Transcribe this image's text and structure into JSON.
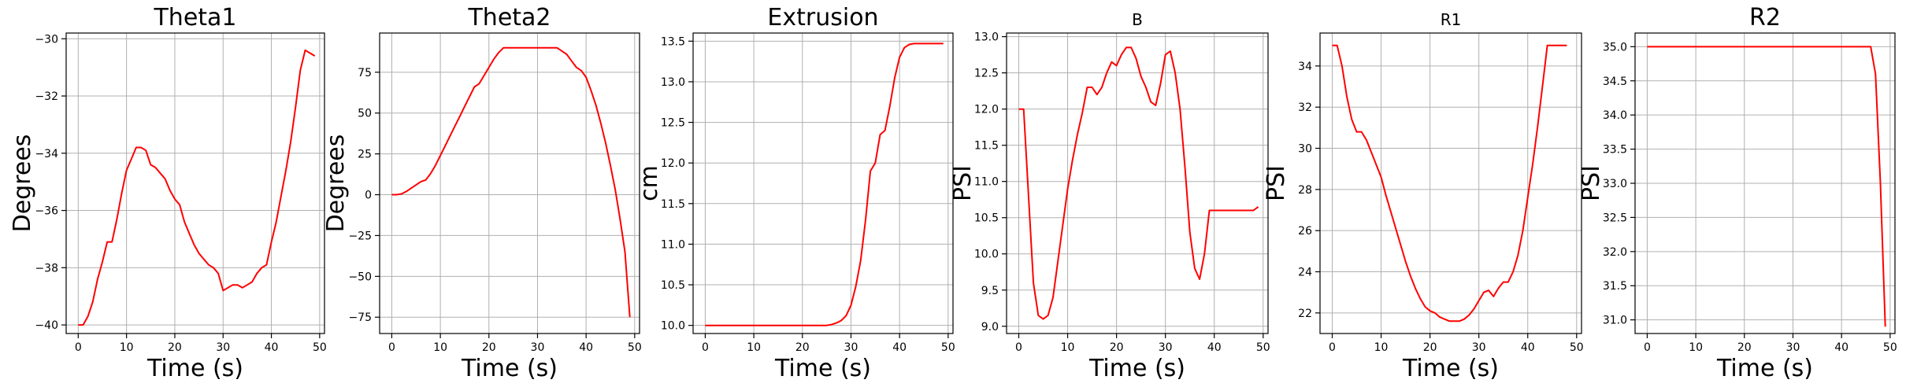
{
  "chart_data": [
    {
      "type": "line",
      "title": "Theta1",
      "xlabel": "Time (s)",
      "ylabel": "Degrees",
      "xlim": [
        -2.5,
        51
      ],
      "ylim": [
        -40.3,
        -29.8
      ],
      "xticks": [
        0,
        10,
        20,
        30,
        40,
        50
      ],
      "yticks": [
        -40,
        -38,
        -36,
        -34,
        -32,
        -30
      ],
      "grid": true,
      "line_color": "#ff0000",
      "x": [
        0,
        1,
        2,
        3,
        4,
        5,
        6,
        7,
        8,
        9,
        10,
        11,
        12,
        13,
        14,
        15,
        16,
        17,
        18,
        19,
        20,
        21,
        22,
        23,
        24,
        25,
        26,
        27,
        28,
        29,
        30,
        31,
        32,
        33,
        34,
        35,
        36,
        37,
        38,
        39,
        40,
        41,
        42,
        43,
        44,
        45,
        46,
        47,
        48,
        49
      ],
      "y": [
        -40,
        -40,
        -39.7,
        -39.2,
        -38.4,
        -37.8,
        -37.1,
        -37.1,
        -36.3,
        -35.4,
        -34.6,
        -34.2,
        -33.8,
        -33.8,
        -33.9,
        -34.4,
        -34.5,
        -34.7,
        -34.9,
        -35.3,
        -35.6,
        -35.8,
        -36.4,
        -36.8,
        -37.2,
        -37.5,
        -37.7,
        -37.9,
        -38.0,
        -38.2,
        -38.8,
        -38.7,
        -38.6,
        -38.6,
        -38.7,
        -38.6,
        -38.5,
        -38.2,
        -38.0,
        -37.9,
        -37.1,
        -36.4,
        -35.5,
        -34.6,
        -33.6,
        -32.4,
        -31.1,
        -30.4,
        -30.5,
        -30.6
      ]
    },
    {
      "type": "line",
      "title": "Theta2",
      "xlabel": "Time (s)",
      "ylabel": "Degrees",
      "xlim": [
        -2.5,
        51
      ],
      "ylim": [
        -85,
        99
      ],
      "xticks": [
        0,
        10,
        20,
        30,
        40,
        50
      ],
      "yticks": [
        -75,
        -50,
        -25,
        0,
        25,
        50,
        75
      ],
      "grid": true,
      "line_color": "#ff0000",
      "x": [
        0,
        1,
        2,
        3,
        4,
        5,
        6,
        7,
        8,
        9,
        10,
        11,
        12,
        13,
        14,
        15,
        16,
        17,
        18,
        19,
        20,
        21,
        22,
        23,
        24,
        25,
        26,
        27,
        28,
        29,
        30,
        31,
        32,
        33,
        34,
        35,
        36,
        37,
        38,
        39,
        40,
        41,
        42,
        43,
        44,
        45,
        46,
        47,
        48,
        49
      ],
      "y": [
        0,
        0,
        0.5,
        2,
        4,
        6,
        8,
        9,
        13,
        18,
        24,
        30,
        36,
        42,
        48,
        54,
        60,
        66,
        68,
        73,
        78,
        83,
        87,
        90,
        90,
        90,
        90,
        90,
        90,
        90,
        90,
        90,
        90,
        90,
        90,
        88,
        86,
        82,
        78,
        76,
        72,
        64,
        55,
        44,
        32,
        18,
        3,
        -15,
        -35,
        -75
      ]
    },
    {
      "type": "line",
      "title": "Extrusion",
      "xlabel": "Time (s)",
      "ylabel": "cm",
      "xlim": [
        -2.5,
        51
      ],
      "ylim": [
        9.9,
        13.6
      ],
      "xticks": [
        0,
        10,
        20,
        30,
        40,
        50
      ],
      "yticks": [
        10.0,
        10.5,
        11.0,
        11.5,
        12.0,
        12.5,
        13.0,
        13.5
      ],
      "grid": true,
      "line_color": "#ff0000",
      "x": [
        0,
        2,
        4,
        6,
        8,
        10,
        12,
        14,
        16,
        18,
        20,
        22,
        24,
        25,
        26,
        27,
        28,
        29,
        30,
        31,
        32,
        33,
        34,
        35,
        36,
        37,
        38,
        39,
        40,
        41,
        42,
        43,
        44,
        45,
        46,
        47,
        48,
        49
      ],
      "y": [
        10.0,
        10.0,
        10.0,
        10.0,
        10.0,
        10.0,
        10.0,
        10.0,
        10.0,
        10.0,
        10.0,
        10.0,
        10.0,
        10.0,
        10.01,
        10.03,
        10.06,
        10.12,
        10.25,
        10.48,
        10.8,
        11.3,
        11.9,
        12.0,
        12.35,
        12.4,
        12.7,
        13.05,
        13.3,
        13.42,
        13.46,
        13.47,
        13.47,
        13.47,
        13.47,
        13.47,
        13.47,
        13.47
      ]
    },
    {
      "type": "line",
      "title": "B",
      "xlabel": "Time (s)",
      "ylabel": "PSI",
      "xlim": [
        -2.5,
        51
      ],
      "ylim": [
        8.9,
        13.05
      ],
      "xticks": [
        0,
        10,
        20,
        30,
        40,
        50
      ],
      "yticks": [
        9.0,
        9.5,
        10.0,
        10.5,
        11.0,
        11.5,
        12.0,
        12.5,
        13.0
      ],
      "grid": true,
      "line_color": "#ff0000",
      "x": [
        0,
        1,
        2,
        3,
        4,
        5,
        6,
        7,
        8,
        9,
        10,
        11,
        12,
        13,
        14,
        15,
        16,
        17,
        18,
        19,
        20,
        21,
        22,
        23,
        24,
        25,
        26,
        27,
        28,
        29,
        30,
        31,
        32,
        33,
        34,
        35,
        36,
        37,
        38,
        39,
        40,
        41,
        42,
        43,
        44,
        45,
        46,
        47,
        48,
        49
      ],
      "y": [
        12.0,
        12.0,
        10.8,
        9.6,
        9.15,
        9.1,
        9.15,
        9.4,
        9.9,
        10.4,
        10.9,
        11.3,
        11.65,
        11.95,
        12.3,
        12.3,
        12.2,
        12.3,
        12.5,
        12.65,
        12.6,
        12.75,
        12.85,
        12.85,
        12.7,
        12.45,
        12.3,
        12.1,
        12.05,
        12.35,
        12.75,
        12.8,
        12.5,
        12.0,
        11.2,
        10.3,
        9.8,
        9.65,
        10.0,
        10.6,
        10.6,
        10.6,
        10.6,
        10.6,
        10.6,
        10.6,
        10.6,
        10.6,
        10.6,
        10.65
      ]
    },
    {
      "type": "line",
      "title": "R1",
      "xlabel": "Time (s)",
      "ylabel": "PSI",
      "xlim": [
        -2.5,
        51
      ],
      "ylim": [
        21,
        35.6
      ],
      "xticks": [
        0,
        10,
        20,
        30,
        40,
        50
      ],
      "yticks": [
        22,
        24,
        26,
        28,
        30,
        32,
        34
      ],
      "grid": true,
      "line_color": "#ff0000",
      "x": [
        0,
        1,
        2,
        3,
        4,
        5,
        6,
        7,
        8,
        9,
        10,
        11,
        12,
        13,
        14,
        15,
        16,
        17,
        18,
        19,
        20,
        21,
        22,
        23,
        24,
        25,
        26,
        27,
        28,
        29,
        30,
        31,
        32,
        33,
        34,
        35,
        36,
        37,
        38,
        39,
        40,
        41,
        42,
        43,
        44,
        45,
        46,
        47,
        48
      ],
      "y": [
        35,
        35,
        34,
        32.5,
        31.4,
        30.8,
        30.8,
        30.4,
        29.8,
        29.2,
        28.6,
        27.7,
        26.9,
        26.1,
        25.3,
        24.5,
        23.8,
        23.2,
        22.7,
        22.3,
        22.1,
        22.0,
        21.8,
        21.7,
        21.6,
        21.6,
        21.6,
        21.7,
        21.9,
        22.2,
        22.6,
        23.0,
        23.1,
        22.8,
        23.2,
        23.5,
        23.5,
        24.0,
        24.8,
        26.0,
        27.6,
        29.2,
        31.0,
        33.0,
        35.0,
        35.0,
        35.0,
        35.0,
        35.0
      ]
    },
    {
      "type": "line",
      "title": "R2",
      "xlabel": "Time (s)",
      "ylabel": "PSI",
      "xlim": [
        -2.5,
        51
      ],
      "ylim": [
        30.8,
        35.2
      ],
      "xticks": [
        0,
        10,
        20,
        30,
        40,
        50
      ],
      "yticks": [
        31.0,
        31.5,
        32.0,
        32.5,
        33.0,
        33.5,
        34.0,
        34.5,
        35.0
      ],
      "grid": true,
      "line_color": "#ff0000",
      "x": [
        0,
        5,
        10,
        15,
        20,
        25,
        30,
        35,
        40,
        45,
        46,
        47,
        48,
        49
      ],
      "y": [
        35,
        35,
        35,
        35,
        35,
        35,
        35,
        35,
        35,
        35,
        35,
        34.6,
        33.0,
        30.9
      ]
    }
  ]
}
